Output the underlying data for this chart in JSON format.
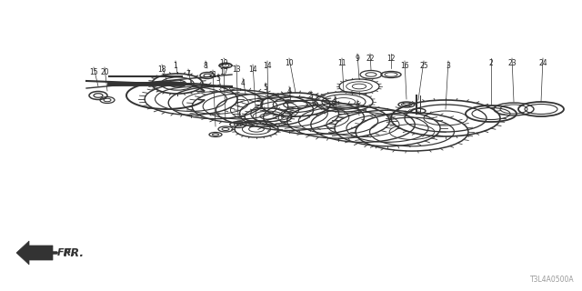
{
  "background_color": "#ffffff",
  "part_number": "T3L4A0500A",
  "fr_label": "FR.",
  "line_color": "#333333",
  "text_color": "#222222"
}
